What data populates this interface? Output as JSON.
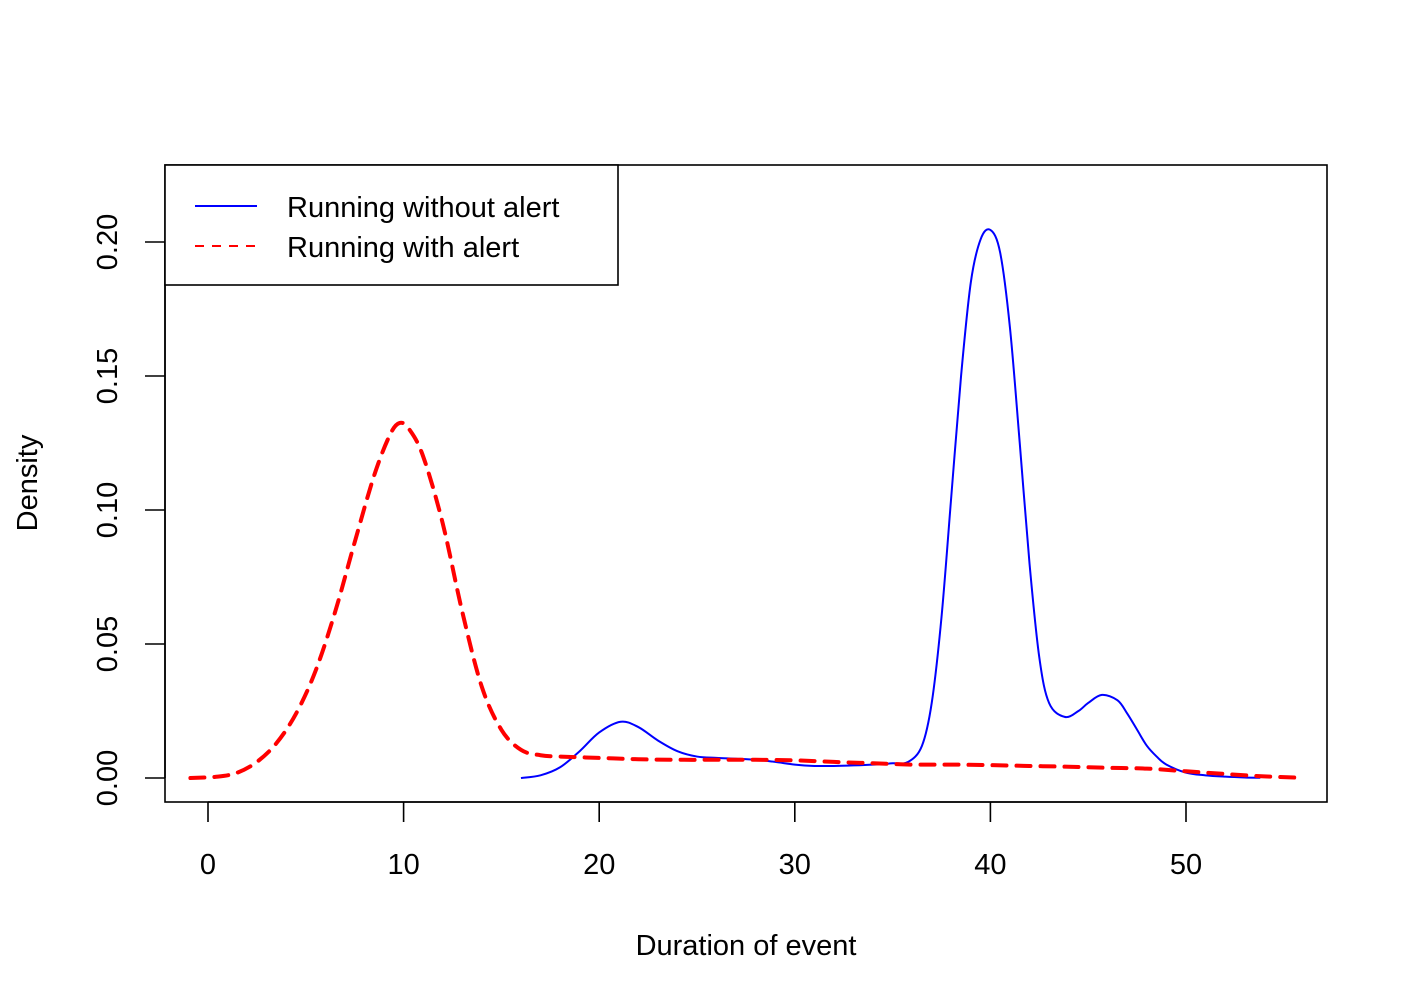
{
  "chart_data": {
    "type": "line",
    "title": "",
    "xlabel": "Duration of event",
    "ylabel": "Density",
    "xlim": [
      -2.2,
      57.2
    ],
    "ylim": [
      -0.009,
      0.229
    ],
    "xticks": [
      0,
      10,
      20,
      30,
      40,
      50
    ],
    "xtick_labels": [
      "0",
      "10",
      "20",
      "30",
      "40",
      "50"
    ],
    "yticks": [
      0.0,
      0.05,
      0.1,
      0.15,
      0.2
    ],
    "ytick_labels": [
      "0.00",
      "0.05",
      "0.10",
      "0.15",
      "0.20"
    ],
    "grid": false,
    "legend_position": "topleft",
    "series": [
      {
        "name": "Running without alert",
        "color": "#0000ff",
        "line_style": "solid",
        "x": [
          16.0,
          17.0,
          18.0,
          19.0,
          20.0,
          21.1,
          22.0,
          23.0,
          24.0,
          25.0,
          26.0,
          27.0,
          28.0,
          29.0,
          30.0,
          31.0,
          32.0,
          33.0,
          34.0,
          35.0,
          35.8,
          36.5,
          37.0,
          37.5,
          38.0,
          38.5,
          39.0,
          39.5,
          40.0,
          40.5,
          41.0,
          41.5,
          42.0,
          42.5,
          43.0,
          43.8,
          44.5,
          45.0,
          45.7,
          46.5,
          47.0,
          47.5,
          48.0,
          48.5,
          49.0,
          50.0,
          51.0,
          52.0,
          53.0,
          53.8
        ],
        "values": [
          0.0,
          0.001,
          0.004,
          0.01,
          0.017,
          0.021,
          0.019,
          0.014,
          0.01,
          0.008,
          0.0075,
          0.0072,
          0.0068,
          0.006,
          0.005,
          0.0045,
          0.0045,
          0.0047,
          0.005,
          0.0055,
          0.006,
          0.012,
          0.028,
          0.06,
          0.105,
          0.15,
          0.185,
          0.201,
          0.2045,
          0.196,
          0.168,
          0.125,
          0.08,
          0.045,
          0.028,
          0.0228,
          0.025,
          0.028,
          0.031,
          0.029,
          0.024,
          0.018,
          0.012,
          0.008,
          0.005,
          0.002,
          0.001,
          0.0005,
          0.0002,
          0.0001
        ]
      },
      {
        "name": "Running with alert",
        "color": "#ff0000",
        "line_style": "dashed",
        "x": [
          -0.9,
          0.5,
          1.5,
          2.5,
          3.5,
          4.5,
          5.5,
          6.5,
          7.5,
          8.5,
          9.3,
          9.8,
          10.3,
          11.0,
          12.0,
          13.0,
          14.0,
          15.0,
          16.0,
          17.0,
          18.0,
          20.0,
          22.0,
          24.0,
          26.0,
          28.0,
          30.0,
          32.0,
          34.0,
          36.0,
          38.0,
          40.0,
          42.0,
          44.0,
          46.0,
          48.0,
          50.0,
          52.0,
          54.0,
          55.9
        ],
        "values": [
          0.0,
          0.0005,
          0.002,
          0.006,
          0.013,
          0.024,
          0.04,
          0.062,
          0.088,
          0.113,
          0.128,
          0.1325,
          0.13,
          0.12,
          0.095,
          0.062,
          0.034,
          0.018,
          0.0105,
          0.0085,
          0.008,
          0.0075,
          0.007,
          0.0068,
          0.0068,
          0.0068,
          0.0066,
          0.006,
          0.0055,
          0.005,
          0.005,
          0.0048,
          0.0045,
          0.0042,
          0.0038,
          0.0035,
          0.0025,
          0.0015,
          0.0006,
          0.0001
        ]
      }
    ]
  }
}
